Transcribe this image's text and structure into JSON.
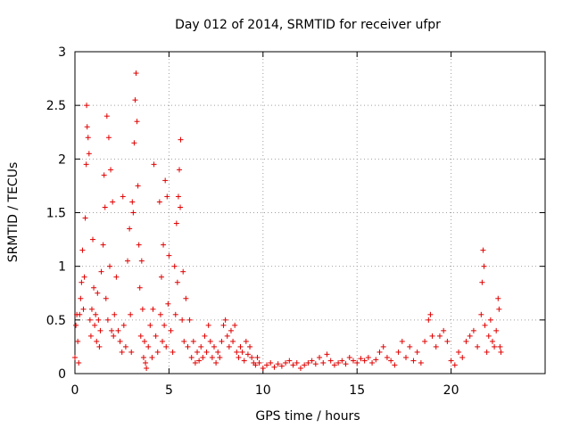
{
  "chart_data": {
    "type": "scatter",
    "title": "Day 012 of 2014, SRMTID for receiver ufpr",
    "xlabel": "GPS time / hours",
    "ylabel": "SRMTID / TECUs",
    "xlim": [
      0,
      25
    ],
    "ylim": [
      0,
      3
    ],
    "xticks": [
      0,
      5,
      10,
      15,
      20
    ],
    "xtick_labels": [
      "0",
      "5",
      "10",
      "15",
      "20"
    ],
    "yticks": [
      0,
      0.5,
      1,
      1.5,
      2,
      2.5,
      3
    ],
    "ytick_labels": [
      "0",
      "0.5",
      "1",
      "1.5",
      "2",
      "2.5",
      "3"
    ],
    "grid": true,
    "marker": "+",
    "color": "#e00000",
    "series": [
      {
        "name": "SRMTID",
        "points": [
          [
            0.0,
            0.15
          ],
          [
            0.05,
            0.45
          ],
          [
            0.1,
            0.55
          ],
          [
            0.15,
            0.3
          ],
          [
            0.2,
            0.1
          ],
          [
            0.25,
            0.55
          ],
          [
            0.3,
            0.7
          ],
          [
            0.35,
            0.85
          ],
          [
            0.4,
            1.15
          ],
          [
            0.45,
            0.6
          ],
          [
            0.5,
            0.9
          ],
          [
            0.55,
            1.45
          ],
          [
            0.6,
            1.95
          ],
          [
            0.62,
            2.5
          ],
          [
            0.65,
            2.3
          ],
          [
            0.7,
            2.2
          ],
          [
            0.75,
            2.05
          ],
          [
            0.8,
            0.5
          ],
          [
            0.85,
            0.35
          ],
          [
            0.9,
            0.6
          ],
          [
            0.95,
            1.25
          ],
          [
            1.0,
            0.8
          ],
          [
            1.05,
            0.45
          ],
          [
            1.1,
            0.55
          ],
          [
            1.15,
            0.3
          ],
          [
            1.2,
            0.75
          ],
          [
            1.25,
            0.5
          ],
          [
            1.3,
            0.25
          ],
          [
            1.35,
            0.4
          ],
          [
            1.4,
            0.95
          ],
          [
            1.5,
            1.2
          ],
          [
            1.55,
            1.85
          ],
          [
            1.6,
            1.55
          ],
          [
            1.65,
            0.7
          ],
          [
            1.7,
            2.4
          ],
          [
            1.75,
            0.5
          ],
          [
            1.8,
            2.2
          ],
          [
            1.85,
            1.0
          ],
          [
            1.9,
            1.9
          ],
          [
            1.95,
            0.4
          ],
          [
            2.0,
            1.6
          ],
          [
            2.05,
            0.35
          ],
          [
            2.1,
            0.55
          ],
          [
            2.2,
            0.9
          ],
          [
            2.3,
            0.4
          ],
          [
            2.4,
            0.3
          ],
          [
            2.5,
            0.2
          ],
          [
            2.55,
            1.65
          ],
          [
            2.6,
            0.45
          ],
          [
            2.7,
            0.25
          ],
          [
            2.8,
            1.05
          ],
          [
            2.9,
            1.35
          ],
          [
            2.95,
            0.55
          ],
          [
            3.0,
            0.2
          ],
          [
            3.05,
            1.6
          ],
          [
            3.1,
            1.5
          ],
          [
            3.15,
            2.15
          ],
          [
            3.2,
            2.55
          ],
          [
            3.25,
            2.8
          ],
          [
            3.3,
            2.35
          ],
          [
            3.35,
            1.75
          ],
          [
            3.4,
            1.2
          ],
          [
            3.45,
            0.8
          ],
          [
            3.5,
            0.35
          ],
          [
            3.55,
            1.05
          ],
          [
            3.6,
            0.6
          ],
          [
            3.65,
            0.15
          ],
          [
            3.7,
            0.3
          ],
          [
            3.75,
            0.1
          ],
          [
            3.8,
            0.05
          ],
          [
            3.9,
            0.25
          ],
          [
            4.0,
            0.45
          ],
          [
            4.1,
            0.15
          ],
          [
            4.15,
            0.6
          ],
          [
            4.2,
            1.95
          ],
          [
            4.3,
            0.35
          ],
          [
            4.4,
            0.2
          ],
          [
            4.5,
            1.6
          ],
          [
            4.55,
            0.55
          ],
          [
            4.6,
            0.9
          ],
          [
            4.65,
            0.3
          ],
          [
            4.7,
            1.2
          ],
          [
            4.75,
            0.45
          ],
          [
            4.8,
            1.8
          ],
          [
            4.85,
            0.25
          ],
          [
            4.9,
            1.65
          ],
          [
            4.95,
            0.65
          ],
          [
            5.0,
            1.1
          ],
          [
            5.1,
            0.4
          ],
          [
            5.2,
            0.2
          ],
          [
            5.3,
            1.0
          ],
          [
            5.35,
            0.55
          ],
          [
            5.4,
            1.4
          ],
          [
            5.45,
            0.85
          ],
          [
            5.5,
            1.65
          ],
          [
            5.55,
            1.9
          ],
          [
            5.6,
            1.55
          ],
          [
            5.62,
            2.18
          ],
          [
            5.7,
            0.5
          ],
          [
            5.75,
            0.95
          ],
          [
            5.8,
            0.3
          ],
          [
            5.9,
            0.7
          ],
          [
            6.0,
            0.25
          ],
          [
            6.1,
            0.5
          ],
          [
            6.2,
            0.15
          ],
          [
            6.3,
            0.3
          ],
          [
            6.4,
            0.1
          ],
          [
            6.5,
            0.2
          ],
          [
            6.6,
            0.12
          ],
          [
            6.7,
            0.25
          ],
          [
            6.8,
            0.15
          ],
          [
            6.9,
            0.35
          ],
          [
            7.0,
            0.2
          ],
          [
            7.1,
            0.45
          ],
          [
            7.2,
            0.3
          ],
          [
            7.3,
            0.15
          ],
          [
            7.4,
            0.25
          ],
          [
            7.5,
            0.1
          ],
          [
            7.6,
            0.2
          ],
          [
            7.7,
            0.15
          ],
          [
            7.8,
            0.3
          ],
          [
            7.9,
            0.45
          ],
          [
            8.0,
            0.5
          ],
          [
            8.1,
            0.35
          ],
          [
            8.2,
            0.25
          ],
          [
            8.3,
            0.4
          ],
          [
            8.4,
            0.3
          ],
          [
            8.5,
            0.45
          ],
          [
            8.6,
            0.2
          ],
          [
            8.7,
            0.15
          ],
          [
            8.8,
            0.25
          ],
          [
            8.9,
            0.2
          ],
          [
            9.0,
            0.12
          ],
          [
            9.1,
            0.3
          ],
          [
            9.2,
            0.18
          ],
          [
            9.3,
            0.25
          ],
          [
            9.4,
            0.15
          ],
          [
            9.5,
            0.1
          ],
          [
            9.6,
            0.08
          ],
          [
            9.7,
            0.15
          ],
          [
            9.8,
            0.1
          ],
          [
            10.0,
            0.05
          ],
          [
            10.2,
            0.08
          ],
          [
            10.4,
            0.1
          ],
          [
            10.6,
            0.06
          ],
          [
            10.8,
            0.09
          ],
          [
            11.0,
            0.07
          ],
          [
            11.2,
            0.1
          ],
          [
            11.4,
            0.12
          ],
          [
            11.6,
            0.08
          ],
          [
            11.8,
            0.1
          ],
          [
            12.0,
            0.05
          ],
          [
            12.2,
            0.08
          ],
          [
            12.4,
            0.1
          ],
          [
            12.6,
            0.12
          ],
          [
            12.8,
            0.09
          ],
          [
            13.0,
            0.15
          ],
          [
            13.2,
            0.1
          ],
          [
            13.4,
            0.18
          ],
          [
            13.6,
            0.12
          ],
          [
            13.8,
            0.08
          ],
          [
            14.0,
            0.1
          ],
          [
            14.2,
            0.12
          ],
          [
            14.4,
            0.09
          ],
          [
            14.6,
            0.15
          ],
          [
            14.8,
            0.12
          ],
          [
            15.0,
            0.1
          ],
          [
            15.2,
            0.14
          ],
          [
            15.4,
            0.12
          ],
          [
            15.6,
            0.15
          ],
          [
            15.8,
            0.1
          ],
          [
            16.0,
            0.13
          ],
          [
            16.2,
            0.2
          ],
          [
            16.4,
            0.25
          ],
          [
            16.6,
            0.15
          ],
          [
            16.8,
            0.12
          ],
          [
            17.0,
            0.08
          ],
          [
            17.2,
            0.2
          ],
          [
            17.4,
            0.3
          ],
          [
            17.6,
            0.15
          ],
          [
            17.8,
            0.25
          ],
          [
            18.0,
            0.12
          ],
          [
            18.2,
            0.2
          ],
          [
            18.4,
            0.1
          ],
          [
            18.6,
            0.3
          ],
          [
            18.8,
            0.5
          ],
          [
            18.9,
            0.55
          ],
          [
            19.0,
            0.35
          ],
          [
            19.2,
            0.25
          ],
          [
            19.4,
            0.35
          ],
          [
            19.6,
            0.4
          ],
          [
            19.8,
            0.3
          ],
          [
            20.0,
            0.12
          ],
          [
            20.2,
            0.08
          ],
          [
            20.4,
            0.2
          ],
          [
            20.6,
            0.15
          ],
          [
            20.8,
            0.3
          ],
          [
            21.0,
            0.35
          ],
          [
            21.2,
            0.4
          ],
          [
            21.4,
            0.25
          ],
          [
            21.6,
            0.55
          ],
          [
            21.65,
            0.85
          ],
          [
            21.7,
            1.15
          ],
          [
            21.75,
            1.0
          ],
          [
            21.8,
            0.45
          ],
          [
            21.9,
            0.2
          ],
          [
            22.0,
            0.35
          ],
          [
            22.1,
            0.5
          ],
          [
            22.2,
            0.3
          ],
          [
            22.3,
            0.25
          ],
          [
            22.4,
            0.4
          ],
          [
            22.5,
            0.7
          ],
          [
            22.55,
            0.6
          ],
          [
            22.6,
            0.25
          ],
          [
            22.65,
            0.2
          ]
        ]
      }
    ]
  }
}
